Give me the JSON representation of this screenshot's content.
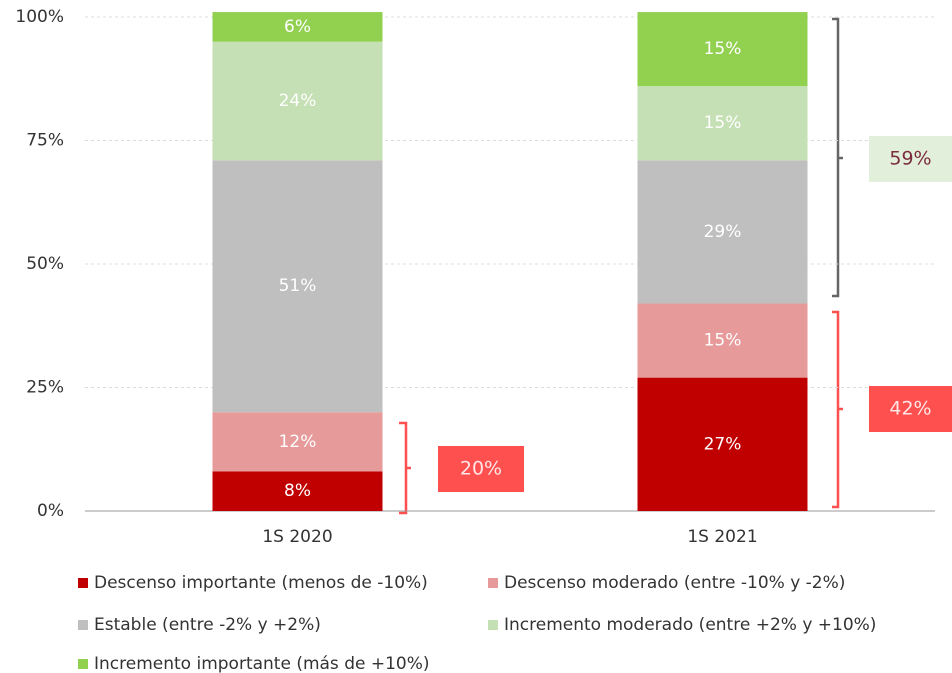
{
  "chart_data": {
    "type": "stacked_bar",
    "categories": [
      "1S 2020",
      "1S 2021"
    ],
    "series": [
      {
        "name": "Descenso importante (menos de -10%)",
        "color": "#c00000",
        "values": [
          8,
          27
        ],
        "value_labels": [
          "8%",
          "27%"
        ]
      },
      {
        "name": "Descenso moderado (entre -10% y -2%)",
        "color": "#e69a9a",
        "values": [
          12,
          15
        ],
        "value_labels": [
          "12%",
          "15%"
        ]
      },
      {
        "name": "Estable (entre -2% y +2%)",
        "color": "#bfbfbf",
        "values": [
          51,
          29
        ],
        "value_labels": [
          "51%",
          "29%"
        ]
      },
      {
        "name": "Incremento moderado (entre +2% y +10%)",
        "color": "#c5e0b4",
        "values": [
          24,
          15
        ],
        "value_labels": [
          "24%",
          "15%"
        ]
      },
      {
        "name": "Incremento importante (más de +10%)",
        "color": "#92d050",
        "values": [
          6,
          15
        ],
        "value_labels": [
          "6%",
          "15%"
        ]
      }
    ],
    "ylim": [
      0,
      100
    ],
    "yticks": [
      {
        "value": 0,
        "label": "0%"
      },
      {
        "value": 25,
        "label": "25%"
      },
      {
        "value": 50,
        "label": "50%"
      },
      {
        "value": 75,
        "label": "75%"
      },
      {
        "value": 100,
        "label": "100%"
      }
    ],
    "grid": true,
    "annotations": [
      {
        "value": 20,
        "label": "20%"
      },
      {
        "value": 42,
        "label": "42%"
      },
      {
        "value": 59,
        "label": "59%"
      }
    ]
  }
}
